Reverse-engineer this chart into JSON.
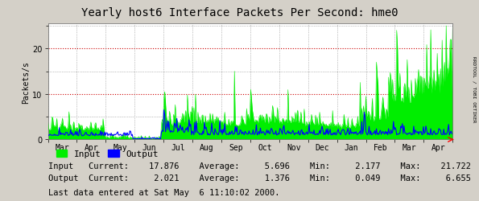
{
  "title": "Yearly host6 Interface Packets Per Second: hme0",
  "ylabel": "Packets/s",
  "fig_bg_color": "#d4d0c8",
  "plot_bg_color": "#ffffff",
  "grid_color_h": "#cc0000",
  "grid_color_v": "#888888",
  "ylim": [
    0,
    25.5
  ],
  "yticks": [
    0,
    10,
    20
  ],
  "month_labels": [
    "Mar",
    "Apr",
    "May",
    "Jun",
    "Jul",
    "Aug",
    "Sep",
    "Oct",
    "Nov",
    "Dec",
    "Jan",
    "Feb",
    "Mar",
    "Apr"
  ],
  "n_months": 14,
  "input_color": "#00ee00",
  "output_color": "#0000ff",
  "input_label": "Input",
  "output_label": "Output",
  "stats_line1": "Input   Current:    17.876    Average:     5.696    Min:     2.177    Max:    21.722",
  "stats_line2": "Output  Current:     2.021    Average:     1.376    Min:     0.049    Max:     6.655",
  "last_data_text": "Last data entered at Sat May  6 11:10:02 2000.",
  "sidebar_text": "RRDTOOL / TOBI OETIKER",
  "title_fontsize": 10,
  "axis_fontsize": 7,
  "legend_fontsize": 8,
  "stats_fontsize": 7.5
}
